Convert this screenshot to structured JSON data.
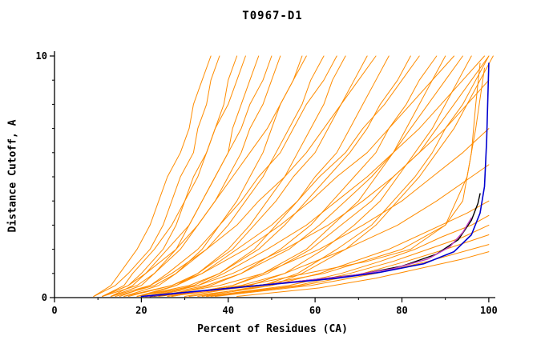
{
  "chart_data": {
    "type": "line",
    "title": "T0967-D1",
    "xlabel": "Percent of Residues (CA)",
    "ylabel": "Distance Cutoff, A",
    "xlim": [
      0,
      101.5
    ],
    "ylim": [
      0,
      10
    ],
    "grid": false,
    "legend": "none",
    "x_ticks": [
      {
        "v": 0,
        "label": "0"
      },
      {
        "v": 20,
        "label": "20"
      },
      {
        "v": 40,
        "label": "40"
      },
      {
        "v": 60,
        "label": "60"
      },
      {
        "v": 80,
        "label": "80"
      },
      {
        "v": 100,
        "label": "100"
      }
    ],
    "x_minor_ticks": [
      10,
      30,
      50,
      70,
      90
    ],
    "y_ticks": [
      {
        "v": 0,
        "label": "0"
      },
      {
        "v": 10,
        "label": "10"
      }
    ],
    "y_minor_ticks": [
      1,
      2,
      3,
      4,
      5,
      6,
      7,
      8,
      9
    ],
    "colors": {
      "model": "#ff8c00",
      "ref_black": "#000000",
      "ref_blue": "#0000d0",
      "ref_magenta": "#c040c0"
    },
    "ylevels": [
      0.05,
      0.5,
      1,
      2,
      3,
      4,
      5,
      6,
      7,
      8,
      9,
      10
    ],
    "series": [
      {
        "name": "m01",
        "color": "model",
        "xs": [
          9,
          14,
          17,
          22,
          25,
          27,
          29,
          32,
          33,
          35,
          36,
          38
        ]
      },
      {
        "name": "m02",
        "color": "model",
        "xs": [
          11,
          17,
          20,
          25,
          28,
          30,
          33,
          35,
          37,
          39,
          40,
          42
        ]
      },
      {
        "name": "m03",
        "color": "model",
        "xs": [
          13,
          20,
          23,
          28,
          31,
          34,
          37,
          40,
          41,
          43,
          45,
          47
        ]
      },
      {
        "name": "m04",
        "color": "model",
        "xs": [
          11,
          19,
          23,
          29,
          33,
          37,
          40,
          43,
          45,
          48,
          50,
          52
        ]
      },
      {
        "name": "m05",
        "color": "model",
        "xs": [
          16,
          24,
          28,
          34,
          38,
          42,
          45,
          48,
          50,
          52,
          55,
          57
        ]
      },
      {
        "name": "m06",
        "color": "model",
        "xs": [
          14,
          23,
          28,
          35,
          40,
          44,
          48,
          51,
          54,
          57,
          59,
          62
        ]
      },
      {
        "name": "m07",
        "color": "model",
        "xs": [
          19,
          28,
          33,
          40,
          45,
          49,
          53,
          56,
          59,
          62,
          64,
          67
        ]
      },
      {
        "name": "m08",
        "color": "model",
        "xs": [
          16,
          27,
          33,
          41,
          46,
          51,
          55,
          60,
          63,
          66,
          69,
          72
        ]
      },
      {
        "name": "m09",
        "color": "model",
        "xs": [
          21,
          32,
          38,
          46,
          51,
          56,
          60,
          65,
          68,
          71,
          74,
          77
        ]
      },
      {
        "name": "m10",
        "color": "model",
        "xs": [
          19,
          31,
          38,
          47,
          53,
          58,
          63,
          68,
          72,
          75,
          79,
          82
        ]
      },
      {
        "name": "m11",
        "color": "model",
        "xs": [
          24,
          36,
          43,
          52,
          59,
          64,
          69,
          74,
          77,
          81,
          84,
          88
        ]
      },
      {
        "name": "m12",
        "color": "model",
        "xs": [
          22,
          35,
          43,
          54,
          61,
          67,
          73,
          78,
          82,
          86,
          90,
          94
        ]
      },
      {
        "name": "m13",
        "color": "model",
        "xs": [
          27,
          41,
          49,
          59,
          66,
          73,
          78,
          84,
          88,
          92,
          96,
          100
        ]
      },
      {
        "name": "m14",
        "color": "model",
        "xs": [
          9,
          13,
          15,
          19,
          22,
          24,
          26,
          29,
          31,
          32,
          34,
          36
        ]
      },
      {
        "name": "m15",
        "color": "model",
        "xs": [
          11,
          16,
          18,
          23,
          27,
          30,
          32,
          35,
          37,
          40,
          42,
          44
        ]
      },
      {
        "name": "m16",
        "color": "model",
        "xs": [
          13,
          18,
          21,
          26,
          31,
          34,
          37,
          40,
          43,
          45,
          48,
          50
        ]
      },
      {
        "name": "m17",
        "color": "model",
        "xs": [
          11,
          17,
          21,
          28,
          33,
          37,
          41,
          45,
          49,
          52,
          55,
          58
        ]
      },
      {
        "name": "m18",
        "color": "model",
        "xs": [
          15,
          22,
          26,
          33,
          38,
          43,
          47,
          52,
          55,
          58,
          62,
          65
        ]
      },
      {
        "name": "m19",
        "color": "model",
        "xs": [
          13,
          22,
          27,
          35,
          42,
          47,
          53,
          58,
          62,
          66,
          70,
          74
        ]
      },
      {
        "name": "m20",
        "color": "model",
        "xs": [
          20,
          28,
          34,
          42,
          50,
          56,
          61,
          67,
          71,
          76,
          80,
          84
        ]
      },
      {
        "name": "m21",
        "color": "model",
        "xs": [
          17,
          27,
          34,
          44,
          52,
          59,
          65,
          72,
          77,
          82,
          87,
          92
        ]
      },
      {
        "name": "m22",
        "color": "model",
        "xs": [
          22,
          33,
          39,
          49,
          58,
          65,
          72,
          78,
          84,
          89,
          94,
          99
        ]
      },
      {
        "name": "m23",
        "color": "model",
        "xs": [
          30,
          45,
          53,
          62,
          69,
          75,
          79,
          83,
          87,
          90,
          93,
          96
        ]
      },
      {
        "name": "m24",
        "color": "model",
        "xs": [
          33,
          48,
          56,
          65,
          73,
          78,
          83,
          87,
          90,
          94,
          97,
          100
        ]
      },
      {
        "name": "m25",
        "color": "model",
        "xs": [
          27,
          41,
          48,
          58,
          64,
          70,
          74,
          78,
          81,
          84,
          87,
          90
        ]
      },
      {
        "name": "m26",
        "color": "model",
        "xs": [
          34,
          50,
          57,
          67,
          74,
          79,
          84,
          88,
          92,
          95,
          98,
          101
        ]
      },
      {
        "name": "m27",
        "color": "model",
        "points": [
          [
            35,
            0.05
          ],
          [
            56,
            0.5
          ],
          [
            68,
            1
          ],
          [
            78,
            1.5
          ],
          [
            86,
            2
          ],
          [
            94,
            2.5
          ],
          [
            100,
            3
          ]
        ]
      },
      {
        "name": "m28",
        "color": "model",
        "points": [
          [
            31,
            0.05
          ],
          [
            50,
            0.5
          ],
          [
            61,
            1
          ],
          [
            77,
            2
          ],
          [
            89,
            3
          ],
          [
            95,
            3.5
          ],
          [
            100,
            4
          ]
        ]
      },
      {
        "name": "m29",
        "color": "model",
        "points": [
          [
            36,
            0.05
          ],
          [
            57,
            0.5
          ],
          [
            71,
            1
          ],
          [
            81,
            1.5
          ],
          [
            90,
            2
          ],
          [
            100,
            2.6
          ]
        ]
      },
      {
        "name": "m30",
        "color": "model",
        "points": [
          [
            26,
            0.05
          ],
          [
            43,
            0.5
          ],
          [
            53,
            1
          ],
          [
            67,
            2
          ],
          [
            79,
            3
          ],
          [
            88,
            4
          ],
          [
            96,
            5
          ],
          [
            100,
            5.5
          ]
        ]
      },
      {
        "name": "m31",
        "color": "model",
        "points": [
          [
            23,
            0.05
          ],
          [
            38,
            0.5
          ],
          [
            48,
            1
          ],
          [
            61,
            2
          ],
          [
            71,
            3
          ],
          [
            80,
            4
          ],
          [
            87,
            5
          ],
          [
            94,
            6
          ],
          [
            100,
            7
          ]
        ]
      },
      {
        "name": "m32",
        "color": "model",
        "points": [
          [
            19,
            0.05
          ],
          [
            33,
            0.5
          ],
          [
            41,
            1
          ],
          [
            53,
            2
          ],
          [
            63,
            3
          ],
          [
            71,
            4
          ],
          [
            78,
            5
          ],
          [
            84,
            6
          ],
          [
            90,
            7
          ],
          [
            95,
            8
          ],
          [
            100,
            9
          ]
        ]
      },
      {
        "name": "m33",
        "color": "model",
        "points": [
          [
            37,
            0.05
          ],
          [
            59,
            0.5
          ],
          [
            74,
            1
          ],
          [
            86,
            1.5
          ],
          [
            96,
            2
          ],
          [
            100,
            2.2
          ]
        ]
      },
      {
        "name": "m34",
        "color": "model",
        "points": [
          [
            35,
            0.05
          ],
          [
            54,
            0.5
          ],
          [
            66,
            1
          ],
          [
            75,
            1.5
          ],
          [
            83,
            2
          ],
          [
            89,
            2.5
          ],
          [
            96,
            3
          ],
          [
            100,
            3.4
          ]
        ]
      },
      {
        "name": "m35",
        "color": "model",
        "points": [
          [
            42,
            0.05
          ],
          [
            61,
            0.4
          ],
          [
            74,
            0.8
          ],
          [
            84,
            1.2
          ],
          [
            94,
            1.6
          ],
          [
            100,
            1.9
          ]
        ]
      },
      {
        "name": "m36",
        "color": "model",
        "points": [
          [
            24,
            0.05
          ],
          [
            44,
            0.5
          ],
          [
            58,
            1
          ],
          [
            72,
            1.5
          ],
          [
            82,
            2
          ],
          [
            90,
            3
          ],
          [
            94,
            4
          ],
          [
            96,
            6
          ],
          [
            97,
            8
          ],
          [
            98,
            9.7
          ]
        ]
      },
      {
        "name": "m37",
        "color": "model",
        "points": [
          [
            26,
            0.05
          ],
          [
            47,
            0.5
          ],
          [
            62,
            1
          ],
          [
            80,
            2
          ],
          [
            90,
            3
          ],
          [
            95,
            5
          ],
          [
            97,
            7
          ],
          [
            99,
            9.5
          ]
        ]
      },
      {
        "name": "ref-black",
        "color": "ref_black",
        "width": 1.4,
        "points": [
          [
            22,
            0.05
          ],
          [
            38,
            0.35
          ],
          [
            55,
            0.65
          ],
          [
            70,
            0.95
          ],
          [
            80,
            1.3
          ],
          [
            88,
            1.8
          ],
          [
            93,
            2.4
          ],
          [
            96,
            3.2
          ],
          [
            97.5,
            3.9
          ],
          [
            98,
            4.3
          ]
        ]
      },
      {
        "name": "ref-magenta",
        "color": "ref_magenta",
        "width": 1.4,
        "points": [
          [
            21,
            0.05
          ],
          [
            36,
            0.3
          ],
          [
            52,
            0.6
          ],
          [
            68,
            0.9
          ],
          [
            78,
            1.2
          ],
          [
            86,
            1.6
          ],
          [
            91,
            2.1
          ],
          [
            94,
            2.7
          ],
          [
            96,
            3.3
          ]
        ]
      },
      {
        "name": "ref-blue",
        "color": "ref_blue",
        "width": 1.6,
        "points": [
          [
            20,
            0.05
          ],
          [
            35,
            0.3
          ],
          [
            50,
            0.55
          ],
          [
            65,
            0.8
          ],
          [
            75,
            1.05
          ],
          [
            85,
            1.4
          ],
          [
            92,
            1.9
          ],
          [
            96,
            2.6
          ],
          [
            98,
            3.5
          ],
          [
            99,
            4.6
          ],
          [
            99.5,
            6.5
          ],
          [
            100,
            9.7
          ]
        ]
      }
    ]
  }
}
